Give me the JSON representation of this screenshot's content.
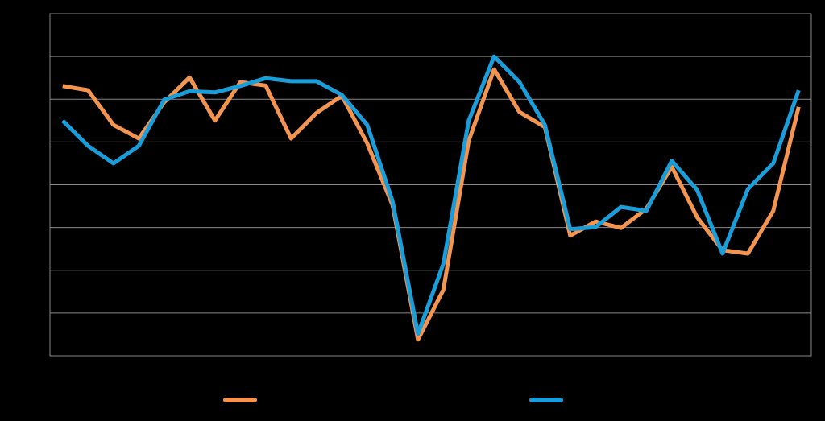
{
  "chart_data": {
    "type": "line",
    "categories": [
      null,
      null,
      null,
      null,
      null,
      null,
      null,
      null,
      null,
      null,
      null,
      null,
      null,
      null,
      null,
      null,
      null,
      null,
      null,
      null,
      null,
      null,
      null,
      null,
      null,
      null,
      null,
      null,
      null,
      null
    ],
    "series": [
      {
        "color": "#f39550",
        "values": [
          6.31,
          6.21,
          5.4,
          5.08,
          5.93,
          6.51,
          5.5,
          6.4,
          6.32,
          5.08,
          5.68,
          6.08,
          4.97,
          3.52,
          0.38,
          1.54,
          5.03,
          6.7,
          5.7,
          5.35,
          2.81,
          3.14,
          2.99,
          3.44,
          4.42,
          3.24,
          2.47,
          2.39,
          3.39,
          5.82
        ]
      },
      {
        "color": "#1a9ed9",
        "values": [
          5.5,
          4.91,
          4.5,
          4.91,
          5.99,
          6.19,
          6.16,
          6.31,
          6.49,
          6.42,
          6.42,
          6.1,
          5.4,
          3.61,
          0.51,
          2.15,
          5.5,
          7.0,
          6.4,
          5.4,
          2.96,
          3.01,
          3.48,
          3.39,
          4.56,
          3.88,
          2.39,
          3.9,
          4.5,
          6.21
        ]
      }
    ],
    "ylim": [
      0,
      8
    ],
    "yticks": [
      0,
      1,
      2,
      3,
      4,
      5,
      6,
      7,
      8
    ],
    "grid": true
  }
}
